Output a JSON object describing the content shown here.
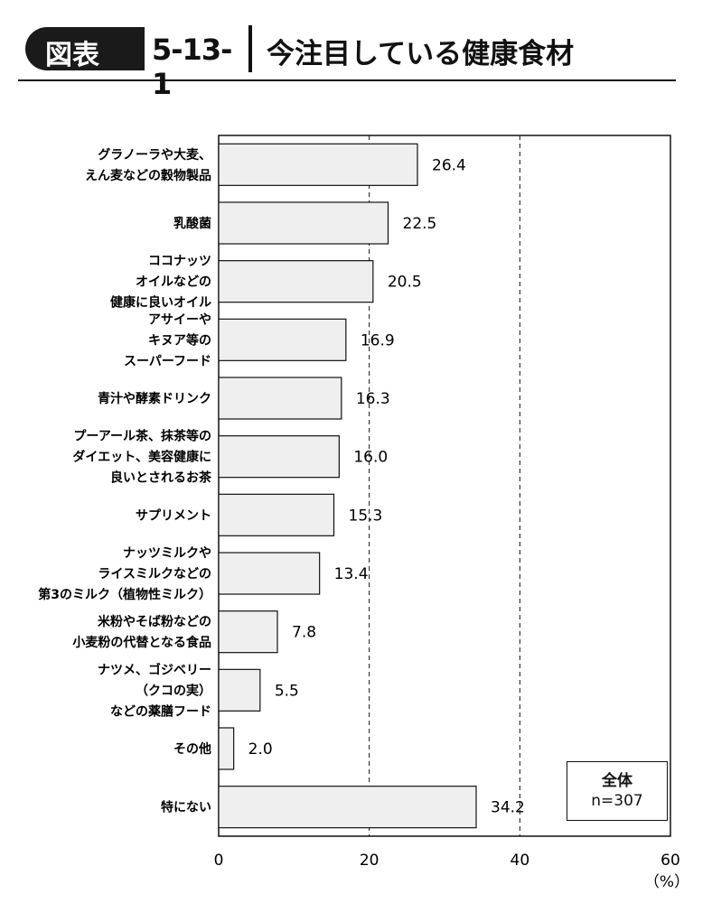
{
  "header": {
    "badge_label": "図表",
    "figure_number": "5-13-1",
    "title": "今注目している健康食材"
  },
  "legend": {
    "line1": "全体",
    "line2": "n=307"
  },
  "chart_data": {
    "type": "bar",
    "orientation": "horizontal",
    "categories": [
      [
        "グラノーラや大麦、",
        "えん麦などの穀物製品"
      ],
      [
        "乳酸菌"
      ],
      [
        "ココナッツ",
        "オイルなどの",
        "健康に良いオイル"
      ],
      [
        "アサイーや",
        "キヌア等の",
        "スーパーフード"
      ],
      [
        "青汁や酵素ドリンク"
      ],
      [
        "プーアール茶、抹茶等の",
        "ダイエット、美容健康に",
        "良いとされるお茶"
      ],
      [
        "サプリメント"
      ],
      [
        "ナッツミルクや",
        "ライスミルクなどの",
        "第3のミルク（植物性ミルク）"
      ],
      [
        "米粉やそば粉などの",
        "小麦粉の代替となる食品"
      ],
      [
        "ナツメ、ゴジベリー",
        "（クコの実）",
        "などの薬膳フード"
      ],
      [
        "その他"
      ],
      [
        "特にない"
      ]
    ],
    "values": [
      26.4,
      22.5,
      20.5,
      16.9,
      16.3,
      16.0,
      15.3,
      13.4,
      7.8,
      5.5,
      2.0,
      34.2
    ],
    "value_labels": [
      "26.4",
      "22.5",
      "20.5",
      "16.9",
      "16.3",
      "16.0",
      "15.3",
      "13.4",
      "7.8",
      "5.5",
      "2.0",
      "34.2"
    ],
    "xlim": [
      0,
      60
    ],
    "x_ticks": [
      "0",
      "20",
      "40",
      "60"
    ],
    "x_unit": "（%）",
    "gridlines_dashed_at": [
      20,
      40
    ],
    "bar_color": "#efefef",
    "bar_border_color": "#111111"
  }
}
